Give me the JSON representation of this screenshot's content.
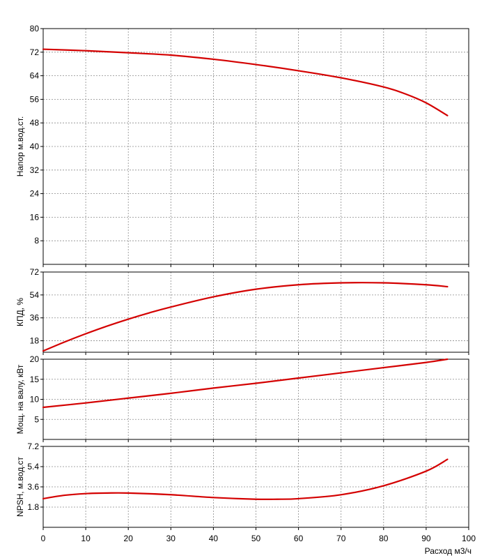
{
  "chart_data": [
    {
      "type": "line",
      "ylabel": "Напор м.вод.ст.",
      "xlabel": "",
      "xlim": [
        0,
        100
      ],
      "ylim": [
        0,
        80
      ],
      "x_ticks": [
        "0",
        "10",
        "20",
        "30",
        "40",
        "50",
        "60",
        "70",
        "80",
        "90",
        "100"
      ],
      "y_ticks": [
        "8",
        "16",
        "24",
        "32",
        "40",
        "48",
        "56",
        "64",
        "72",
        "80"
      ],
      "grid": true,
      "series": [
        {
          "color": "#d40000",
          "x": [
            0,
            10,
            20,
            30,
            40,
            50,
            60,
            70,
            80,
            85,
            90,
            95
          ],
          "y": [
            73.0,
            72.5,
            71.8,
            71.0,
            69.6,
            67.8,
            65.7,
            63.3,
            60.2,
            57.9,
            54.8,
            50.5
          ]
        }
      ]
    },
    {
      "type": "line",
      "ylabel": "КПД, %",
      "xlabel": "",
      "xlim": [
        0,
        100
      ],
      "ylim": [
        9,
        72
      ],
      "x_ticks": [],
      "y_ticks": [
        "18",
        "36",
        "54",
        "72"
      ],
      "grid": true,
      "series": [
        {
          "color": "#d40000",
          "x": [
            0,
            5,
            10,
            15,
            20,
            25,
            30,
            40,
            50,
            60,
            70,
            80,
            90,
            95
          ],
          "y": [
            10,
            17,
            23.5,
            29.5,
            35,
            40,
            44.5,
            52.5,
            58.5,
            62,
            63.5,
            63.5,
            62,
            60.5
          ]
        }
      ]
    },
    {
      "type": "line",
      "ylabel": "Мощ. на валу, кВт",
      "xlabel": "",
      "xlim": [
        0,
        100
      ],
      "ylim": [
        0,
        20
      ],
      "x_ticks": [],
      "y_ticks": [
        "5",
        "10",
        "15",
        "20"
      ],
      "grid": true,
      "series": [
        {
          "color": "#d40000",
          "x": [
            0,
            10,
            20,
            30,
            40,
            50,
            60,
            70,
            80,
            90,
            95
          ],
          "y": [
            8.0,
            9.1,
            10.3,
            11.5,
            12.8,
            14.0,
            15.3,
            16.6,
            17.9,
            19.2,
            20.0
          ]
        }
      ]
    },
    {
      "type": "line",
      "ylabel": "NPSH, м.вод.ст",
      "xlabel": "Расход м3/ч",
      "xlim": [
        0,
        100
      ],
      "ylim": [
        0,
        7.2
      ],
      "x_ticks": [
        "0",
        "10",
        "20",
        "30",
        "40",
        "50",
        "60",
        "70",
        "80",
        "90",
        "100"
      ],
      "y_ticks": [
        "1.8",
        "3.6",
        "5.4",
        "7.2"
      ],
      "grid": true,
      "series": [
        {
          "color": "#d40000",
          "x": [
            0,
            5,
            10,
            15,
            20,
            30,
            40,
            50,
            55,
            60,
            70,
            80,
            90,
            95
          ],
          "y": [
            2.55,
            2.85,
            3.0,
            3.05,
            3.05,
            2.9,
            2.65,
            2.5,
            2.5,
            2.55,
            2.9,
            3.7,
            5.0,
            6.05
          ]
        }
      ]
    }
  ]
}
